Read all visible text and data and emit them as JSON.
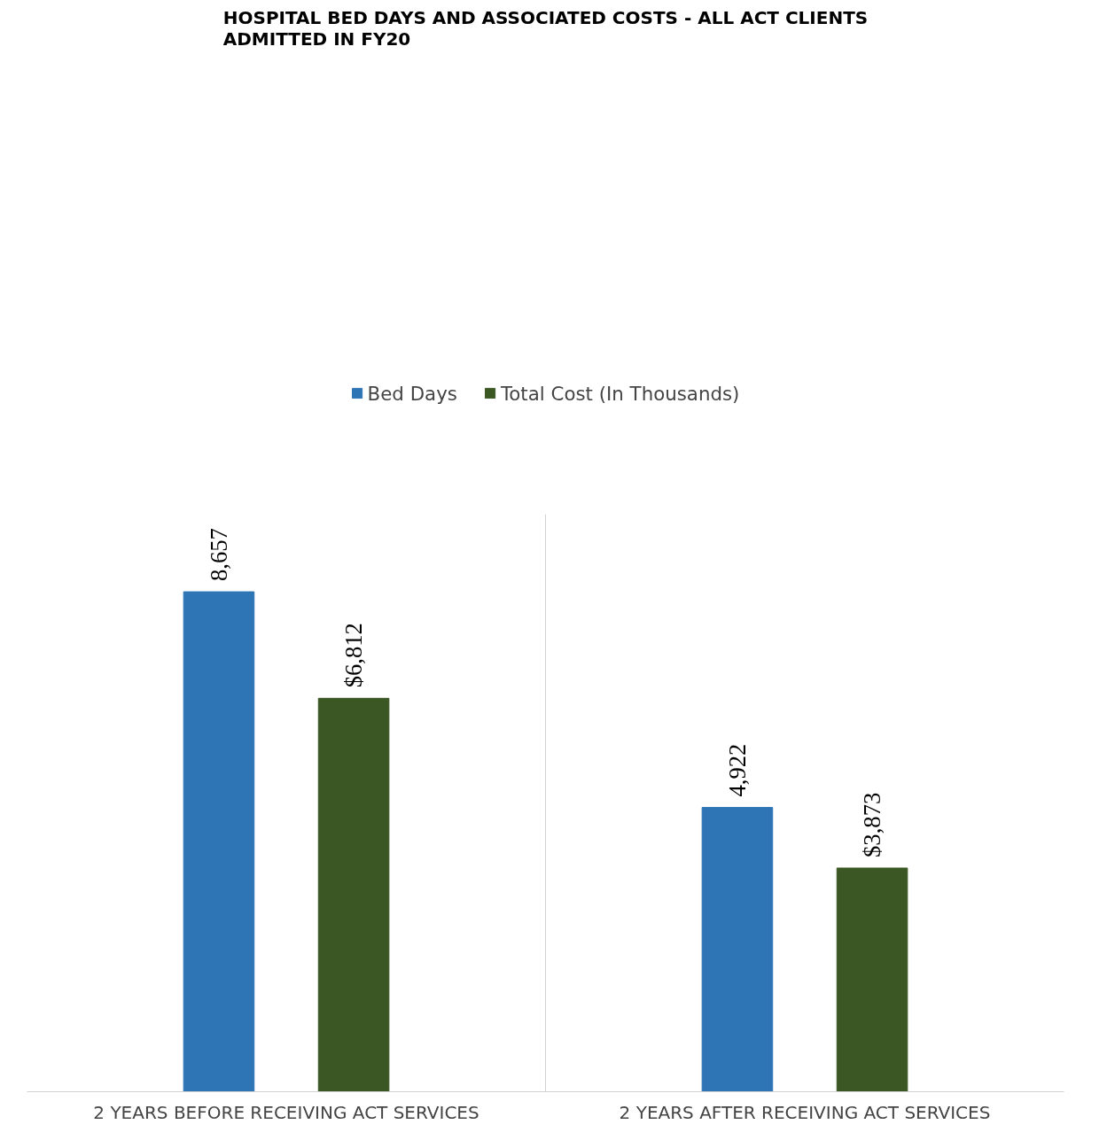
{
  "chart_data": {
    "type": "bar",
    "title": "HOSPITAL BED DAYS AND ASSOCIATED COSTS - ALL ACT CLIENTS\nADMITTED IN FY20",
    "categories": [
      "2 YEARS BEFORE RECEIVING ACT SERVICES",
      "2 YEARS AFTER RECEIVING ACT SERVICES"
    ],
    "series": [
      {
        "name": "Bed Days",
        "color": "#2e75b6",
        "values": [
          8657,
          4922
        ],
        "value_labels": [
          "8,657",
          "4,922"
        ]
      },
      {
        "name": "Total Cost (In Thousands)",
        "color": "#3b5724",
        "values": [
          6812,
          3873
        ],
        "value_labels": [
          "$6,812",
          "$3,873"
        ]
      }
    ],
    "ylim": [
      0,
      10000
    ],
    "legend": "top",
    "grid": "x"
  }
}
